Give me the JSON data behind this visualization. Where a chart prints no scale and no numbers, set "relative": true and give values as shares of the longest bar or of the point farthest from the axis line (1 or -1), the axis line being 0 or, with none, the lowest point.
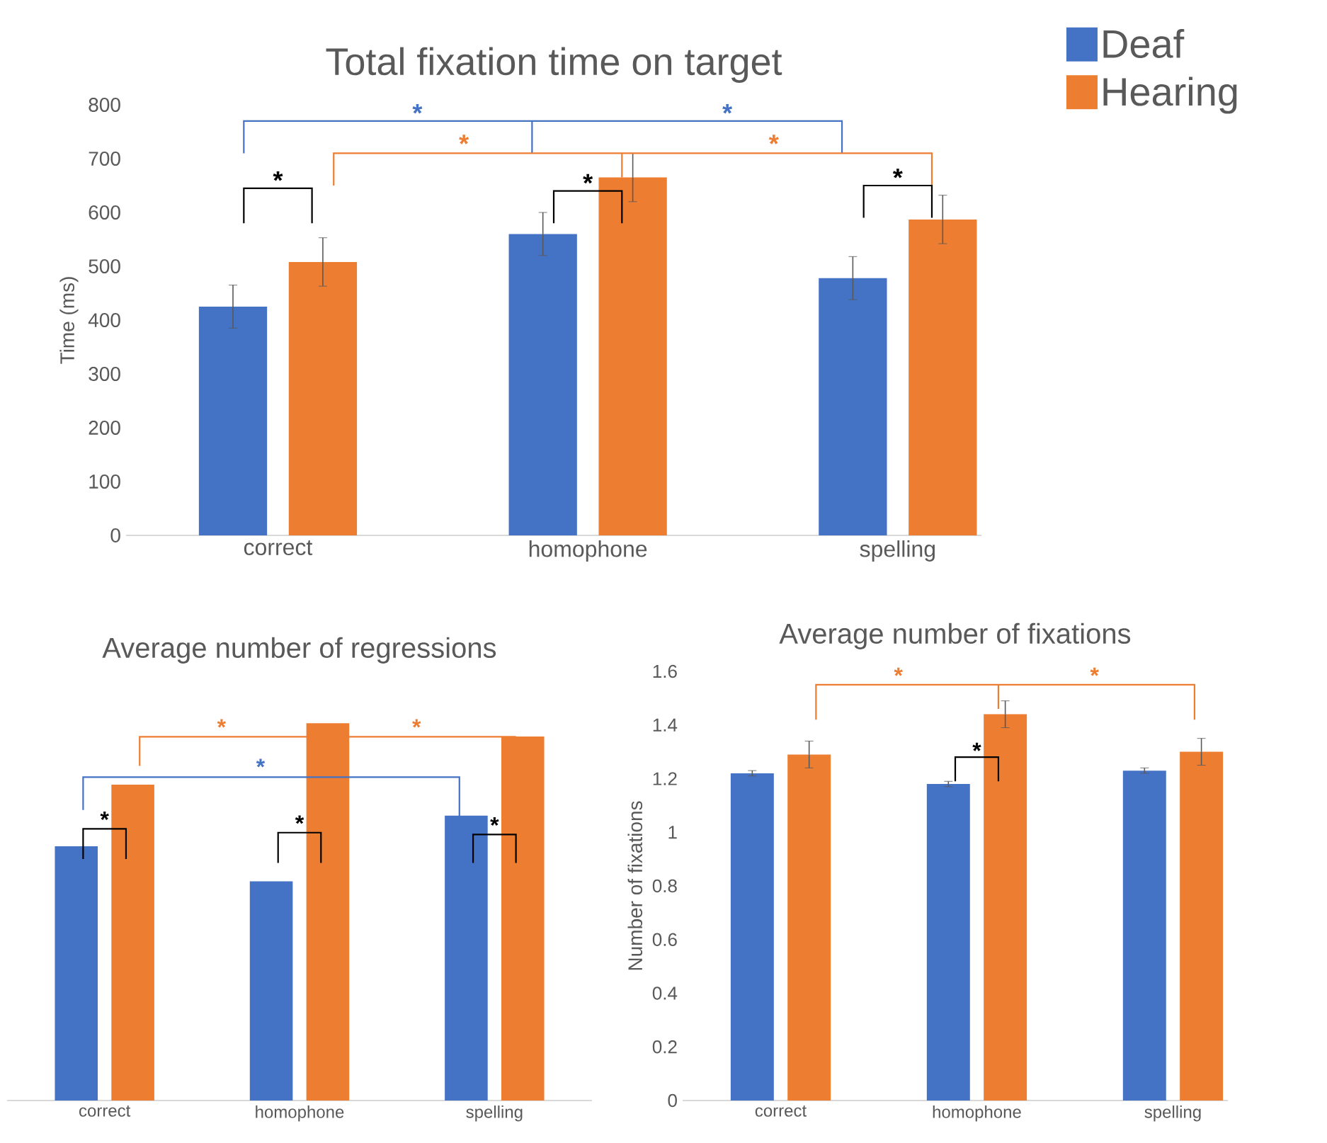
{
  "chart_data": [
    {
      "type": "bar",
      "title": "Total fixation time on target",
      "ylabel": "Time (ms)",
      "categories": [
        "correct",
        "homophone",
        "spelling"
      ],
      "series": [
        {
          "name": "Deaf",
          "color": "#4472c4",
          "values": [
            425,
            560,
            478
          ],
          "errors": [
            40,
            40,
            40
          ]
        },
        {
          "name": "Hearing",
          "color": "#ed7d31",
          "values": [
            508,
            665,
            587
          ],
          "errors": [
            45,
            45,
            45
          ]
        }
      ],
      "ylim": [
        0,
        800
      ],
      "yticks": [
        0,
        100,
        200,
        300,
        400,
        500,
        600,
        700,
        800
      ],
      "legend": "top right",
      "annotations": [
        "*",
        "*",
        "*",
        "*",
        "*",
        "*",
        "*"
      ]
    },
    {
      "type": "bar",
      "title": "Average number of regressions",
      "categories": [
        "correct",
        "homophone",
        "spelling"
      ],
      "relative": true,
      "series": [
        {
          "color": "#4472c4",
          "values": [
            0.674,
            0.581,
            0.755
          ]
        },
        {
          "color": "#ed7d31",
          "values": [
            0.837,
            1,
            0.965
          ]
        }
      ],
      "annotations": [
        "*",
        "*",
        "*",
        "*",
        "*",
        "*"
      ]
    },
    {
      "type": "bar",
      "title": "Average number of fixations",
      "ylabel": "Number of fixations",
      "categories": [
        "correct",
        "homophone",
        "spelling"
      ],
      "series": [
        {
          "color": "#4472c4",
          "values": [
            1.22,
            1.18,
            1.23
          ],
          "errors": [
            0.01,
            0.01,
            0.01
          ]
        },
        {
          "color": "#ed7d31",
          "values": [
            1.29,
            1.44,
            1.3
          ],
          "errors": [
            0.05,
            0.05,
            0.05
          ]
        }
      ],
      "ylim": [
        0,
        1.6
      ],
      "yticks": [
        0,
        0.2,
        0.4,
        0.6,
        0.8,
        1,
        1.2,
        1.4,
        1.6
      ],
      "annotations": [
        "*",
        "*",
        "*"
      ]
    }
  ]
}
